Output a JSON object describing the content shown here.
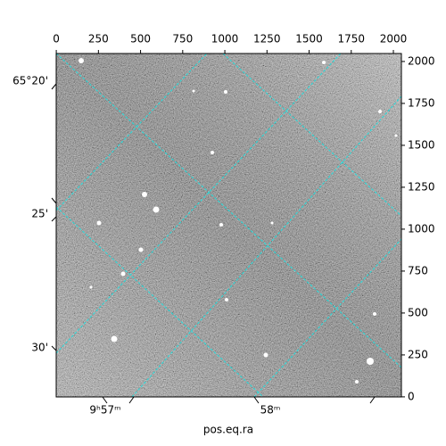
{
  "chart_data": {
    "type": "image",
    "xlabel": "pos.eq.ra",
    "xlim": [
      -0.5,
      2047.5
    ],
    "ylim": [
      -0.5,
      2047.5
    ],
    "xticks": [
      0,
      250,
      500,
      750,
      1000,
      1250,
      1500,
      1750,
      2000
    ],
    "yticks": [
      0,
      250,
      500,
      750,
      1000,
      1250,
      1500,
      1750,
      2000
    ],
    "dec_labels": [
      "65°20'",
      "25'",
      "30'"
    ],
    "ra_labels": [
      "9ʰ57ᵐ",
      "58ᵐ"
    ]
  }
}
